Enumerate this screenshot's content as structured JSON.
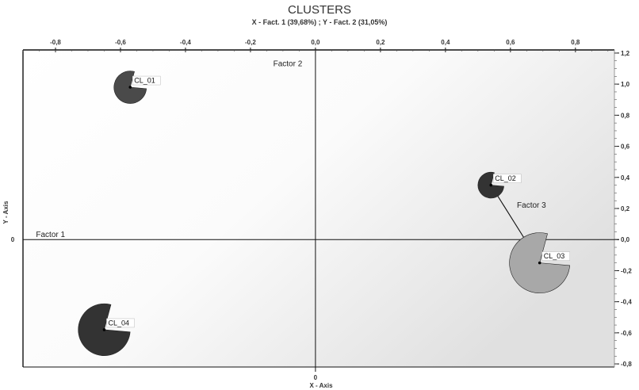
{
  "chart_data": {
    "type": "scatter",
    "title": "CLUSTERS",
    "subtitle": "X - Fact. 1 (39,68%) ; Y - Fact. 2 (31,05%)",
    "xlabel": "X - Axis",
    "ylabel": "Y - Axis",
    "xlim": [
      -0.9,
      0.92
    ],
    "ylim": [
      -0.82,
      1.22
    ],
    "x_ticks": [
      {
        "value": -0.8,
        "label": "-0,8"
      },
      {
        "value": -0.6,
        "label": "-0,6"
      },
      {
        "value": -0.4,
        "label": "-0,4"
      },
      {
        "value": -0.2,
        "label": "-0,2"
      },
      {
        "value": 0.0,
        "label": "0,0"
      },
      {
        "value": 0.2,
        "label": "0,2"
      },
      {
        "value": 0.4,
        "label": "0,4"
      },
      {
        "value": 0.6,
        "label": "0,6"
      },
      {
        "value": 0.8,
        "label": "0,8"
      }
    ],
    "y_ticks": [
      {
        "value": 1.2,
        "label": "1,2"
      },
      {
        "value": 1.0,
        "label": "1,0"
      },
      {
        "value": 0.8,
        "label": "0,8"
      },
      {
        "value": 0.6,
        "label": "0,6"
      },
      {
        "value": 0.4,
        "label": "0,4"
      },
      {
        "value": 0.2,
        "label": "0,2"
      },
      {
        "value": 0.0,
        "label": "0,0"
      },
      {
        "value": -0.2,
        "label": "-0,2"
      },
      {
        "value": -0.4,
        "label": "-0,4"
      },
      {
        "value": -0.6,
        "label": "-0,6"
      },
      {
        "value": -0.8,
        "label": "-0,8"
      }
    ],
    "origin_labels": {
      "x": "0",
      "y": "0"
    },
    "factor_labels": [
      {
        "text": "Factor 1",
        "x": -0.86,
        "y": 0.0
      },
      {
        "text": "Factor 2",
        "x": -0.13,
        "y": 1.1
      },
      {
        "text": "Factor 3",
        "x": 0.62,
        "y": 0.19
      }
    ],
    "points": [
      {
        "label": "CL_01",
        "x": -0.57,
        "y": 0.98,
        "size": 0.05,
        "color": "#4a4a4a"
      },
      {
        "label": "CL_02",
        "x": 0.54,
        "y": 0.35,
        "size": 0.04,
        "color": "#333333"
      },
      {
        "label": "CL_03",
        "x": 0.69,
        "y": -0.15,
        "size": 0.093,
        "color": "#a8a8a8"
      },
      {
        "label": "CL_04",
        "x": -0.65,
        "y": -0.58,
        "size": 0.08,
        "color": "#333333"
      }
    ],
    "links": [
      {
        "from": "CL_02",
        "to": "CL_03"
      }
    ],
    "grid": false,
    "background": "gradient"
  }
}
